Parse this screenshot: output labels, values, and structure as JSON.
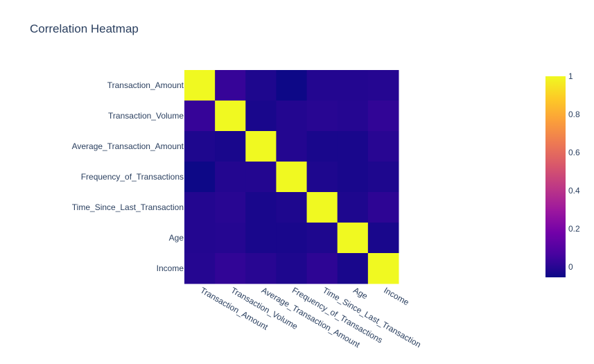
{
  "chart_data": {
    "type": "heatmap",
    "title": "Correlation Heatmap",
    "x": [
      "Transaction_Amount",
      "Transaction_Volume",
      "Average_Transaction_Amount",
      "Frequency_of_Transactions",
      "Time_Since_Last_Transaction",
      "Age",
      "Income"
    ],
    "y": [
      "Transaction_Amount",
      "Transaction_Volume",
      "Average_Transaction_Amount",
      "Frequency_of_Transactions",
      "Time_Since_Last_Transaction",
      "Age",
      "Income"
    ],
    "z": [
      [
        1.0,
        0.03,
        -0.02,
        -0.055,
        -0.01,
        -0.01,
        -0.005
      ],
      [
        0.03,
        1.0,
        -0.03,
        -0.01,
        0.0,
        -0.005,
        0.02
      ],
      [
        -0.02,
        -0.03,
        1.0,
        -0.01,
        -0.03,
        -0.03,
        0.0
      ],
      [
        -0.055,
        -0.01,
        -0.01,
        1.0,
        -0.02,
        -0.03,
        -0.02
      ],
      [
        -0.01,
        0.0,
        -0.03,
        -0.02,
        1.0,
        -0.02,
        0.01
      ],
      [
        -0.01,
        -0.005,
        -0.03,
        -0.03,
        -0.02,
        1.0,
        -0.03
      ],
      [
        -0.005,
        0.02,
        0.0,
        -0.02,
        0.01,
        -0.03,
        1.0
      ]
    ],
    "zrange": [
      -0.055,
      1.0
    ],
    "colorscale": [
      "#0d0887",
      "#46039f",
      "#7201a8",
      "#9c179e",
      "#bd3786",
      "#d8576b",
      "#ed7953",
      "#fb9f3a",
      "#fdca26",
      "#f0f921"
    ],
    "colorbar_ticks": [
      0,
      0.2,
      0.4,
      0.6,
      0.8,
      1
    ],
    "colorbar_tick_labels": [
      "0",
      "0.2",
      "0.4",
      "0.6",
      "0.8",
      "1"
    ],
    "legend": "colorbar-right",
    "grid": false
  }
}
